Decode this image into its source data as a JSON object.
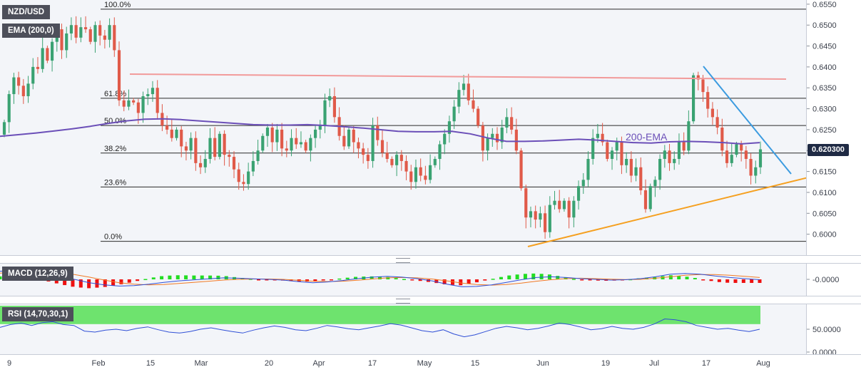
{
  "symbol": "NZD/USD",
  "indicators": {
    "ema_label": "EMA (200,0)",
    "macd_label": "MACD (12,26,9)",
    "rsi_label": "RSI (14,70,30,1)",
    "ema_annotation": "200-EMA"
  },
  "current_price": "0.620300",
  "colors": {
    "bull_candle": "#3aa272",
    "bear_candle": "#e05a49",
    "ema": "#6b4fb8",
    "resistance": "#f29a9a",
    "downtrend": "#3b9be0",
    "uptrend": "#f5a020",
    "macd_line": "#2f4fd6",
    "signal_line": "#f07a24",
    "hist_pos": "#22dd22",
    "hist_neg": "#ee1111",
    "rsi_line": "#2f4fd6",
    "rsi_overbought": "#6ee36e",
    "rsi_oversold": "#f07878"
  },
  "chart_data": [
    {
      "type": "candlestick",
      "title": "NZD/USD",
      "y_ticks": [
        "0.6550",
        "0.6500",
        "0.6450",
        "0.6400",
        "0.6350",
        "0.6300",
        "0.6250",
        "0.6200",
        "0.6150",
        "0.6100",
        "0.6050",
        "0.6000"
      ],
      "x_ticks": [
        "9",
        "Feb",
        "15",
        "Mar",
        "20",
        "Apr",
        "17",
        "May",
        "15",
        "Jun",
        "19",
        "Jul",
        "17",
        "Aug"
      ],
      "ylim": [
        0.595,
        0.656
      ],
      "fibonacci": [
        {
          "label": "100.0%",
          "value": 0.6538
        },
        {
          "label": "61.8%",
          "value": 0.6325
        },
        {
          "label": "50.0%",
          "value": 0.626
        },
        {
          "label": "38.2%",
          "value": 0.6194
        },
        {
          "label": "23.6%",
          "value": 0.6113
        },
        {
          "label": "0.0%",
          "value": 0.5983
        }
      ],
      "closes": [
        0.6268,
        0.6335,
        0.6375,
        0.6355,
        0.633,
        0.636,
        0.64,
        0.6395,
        0.6445,
        0.6415,
        0.646,
        0.649,
        0.644,
        0.648,
        0.65,
        0.647,
        0.6495,
        0.649,
        0.646,
        0.65,
        0.6475,
        0.6465,
        0.65,
        0.644,
        0.632,
        0.6305,
        0.632,
        0.6315,
        0.629,
        0.633,
        0.6335,
        0.635,
        0.629,
        0.626,
        0.625,
        0.623,
        0.625,
        0.621,
        0.62,
        0.623,
        0.617,
        0.616,
        0.618,
        0.623,
        0.6185,
        0.624,
        0.619,
        0.6185,
        0.6155,
        0.6125,
        0.612,
        0.615,
        0.6175,
        0.62,
        0.6235,
        0.6255,
        0.622,
        0.625,
        0.6205,
        0.62,
        0.623,
        0.6215,
        0.622,
        0.62,
        0.623,
        0.625,
        0.626,
        0.632,
        0.633,
        0.628,
        0.6235,
        0.621,
        0.625,
        0.622,
        0.6205,
        0.619,
        0.6175,
        0.626,
        0.6225,
        0.6195,
        0.618,
        0.6165,
        0.619,
        0.6175,
        0.615,
        0.6125,
        0.616,
        0.614,
        0.613,
        0.6165,
        0.618,
        0.6215,
        0.624,
        0.627,
        0.6305,
        0.6345,
        0.636,
        0.632,
        0.63,
        0.626,
        0.62,
        0.623,
        0.624,
        0.622,
        0.6255,
        0.628,
        0.625,
        0.62,
        0.611,
        0.604,
        0.6055,
        0.6035,
        0.605,
        0.6005,
        0.607,
        0.608,
        0.606,
        0.608,
        0.604,
        0.608,
        0.6115,
        0.613,
        0.618,
        0.623,
        0.624,
        0.622,
        0.618,
        0.62,
        0.622,
        0.6165,
        0.618,
        0.614,
        0.616,
        0.6105,
        0.606,
        0.6115,
        0.613,
        0.618,
        0.62,
        0.617,
        0.618,
        0.622,
        0.62,
        0.627,
        0.638,
        0.637,
        0.634,
        0.63,
        0.628,
        0.6255,
        0.62,
        0.617,
        0.619,
        0.6215,
        0.62,
        0.618,
        0.614,
        0.616,
        0.6203
      ],
      "series": [
        {
          "name": "200-EMA",
          "values": [
            0.6234,
            0.6238,
            0.6242,
            0.6247,
            0.6252,
            0.6258,
            0.6265,
            0.6271,
            0.6275,
            0.6276,
            0.6274,
            0.6271,
            0.6268,
            0.6265,
            0.6262,
            0.6261,
            0.6261,
            0.6262,
            0.626,
            0.6257,
            0.6254,
            0.625,
            0.6246,
            0.6245,
            0.6245,
            0.6246,
            0.624,
            0.623,
            0.6222,
            0.6222,
            0.6223,
            0.6225,
            0.6227,
            0.6225,
            0.6222,
            0.6219,
            0.6218,
            0.6221,
            0.6222,
            0.6221,
            0.6219,
            0.6216,
            0.6219
          ]
        }
      ],
      "annotations": [
        "100.0%",
        "61.8%",
        "50.0%",
        "38.2%",
        "23.6%",
        "0.0%",
        "200-EMA"
      ]
    },
    {
      "type": "bar",
      "title": "MACD (12,26,9)",
      "y_ticks": [
        "-0.0000"
      ],
      "series": [
        {
          "name": "MACD",
          "values": [
            0.0044,
            0.0048,
            0.0046,
            0.0038,
            0.002,
            0.0,
            -0.0018,
            -0.003,
            -0.0036,
            -0.0034,
            -0.0026,
            -0.0016,
            -0.0008,
            -0.0003,
            0.0003,
            0.0008,
            0.0006,
            0.0003,
            0.0,
            -0.0004,
            -0.0012,
            -0.0018,
            -0.0014,
            -0.0006,
            0.0004,
            0.0012,
            0.0016,
            0.0012,
            0.0004,
            -0.0008,
            -0.0026,
            -0.004,
            -0.0038,
            -0.003,
            -0.0016,
            -0.0002,
            0.001,
            0.0014,
            0.001,
            0.0004,
            0.0,
            -0.0004,
            -0.0002,
            0.0004,
            0.0014,
            0.0028,
            0.0032,
            0.0028,
            0.0018,
            0.001,
            0.0004,
            -0.0002
          ]
        },
        {
          "name": "Signal",
          "values": [
            0.0034,
            0.004,
            0.0043,
            0.0042,
            0.0036,
            0.0026,
            0.0012,
            -0.0004,
            -0.0018,
            -0.0026,
            -0.003,
            -0.0028,
            -0.0022,
            -0.0016,
            -0.001,
            -0.0004,
            0.0,
            0.0002,
            0.0002,
            0.0,
            -0.0005,
            -0.001,
            -0.0012,
            -0.001,
            -0.0005,
            0.0002,
            0.0008,
            0.001,
            0.0008,
            0.0002,
            -0.0008,
            -0.002,
            -0.0028,
            -0.0031,
            -0.0028,
            -0.002,
            -0.001,
            -0.0002,
            0.0004,
            0.0006,
            0.0004,
            0.0001,
            -0.0001,
            0.0,
            0.0006,
            0.0014,
            0.0022,
            0.0026,
            0.0026,
            0.0022,
            0.0016,
            0.001
          ]
        }
      ]
    },
    {
      "type": "line",
      "title": "RSI (14,70,30,1)",
      "y_ticks": [
        "50.0000",
        "0.0000"
      ],
      "ylim": [
        0,
        100
      ],
      "series": [
        {
          "name": "RSI",
          "values": [
            54,
            60,
            63,
            58,
            64,
            66,
            60,
            58,
            46,
            44,
            48,
            50,
            47,
            52,
            55,
            49,
            44,
            42,
            45,
            50,
            53,
            49,
            45,
            42,
            48,
            53,
            57,
            54,
            49,
            47,
            52,
            58,
            55,
            51,
            49,
            53,
            57,
            62,
            59,
            53,
            47,
            44,
            49,
            40,
            34,
            38,
            45,
            52,
            56,
            53,
            49,
            52,
            57,
            63,
            60,
            55,
            49,
            51,
            56,
            52,
            50,
            54,
            61,
            72,
            70,
            66,
            58,
            54,
            50,
            52,
            48,
            45,
            50
          ]
        }
      ]
    }
  ]
}
